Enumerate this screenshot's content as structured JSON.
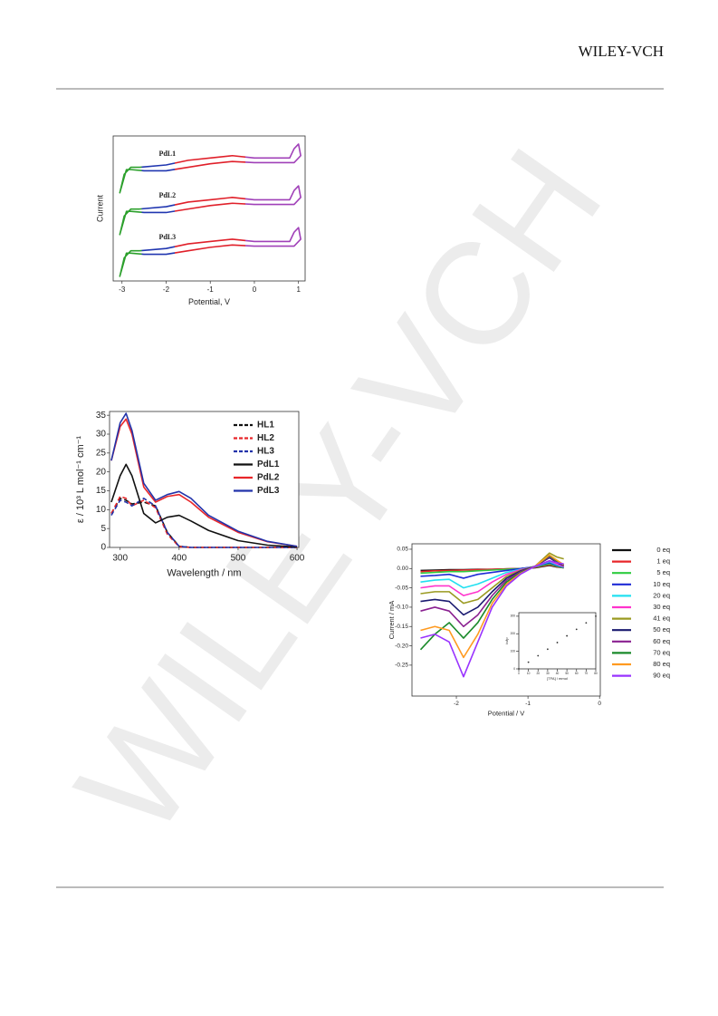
{
  "header": {
    "publisher": "WILEY-VCH"
  },
  "watermark": "WILEY-VCH",
  "figures": [
    {
      "chart_data": {
        "type": "line",
        "xlabel": "Potential, V",
        "ylabel": "Current",
        "xlim": [
          -3.2,
          1.15
        ],
        "xticks": [
          -3,
          -2,
          -1,
          0,
          1
        ],
        "ylim": [
          -1,
          11.5
        ],
        "colors": [
          "#2ca02c",
          "#2036b0",
          "#e0202a",
          "#a040b8"
        ],
        "color_breaks": [
          -2.55,
          -1.8,
          -0.2
        ],
        "x": [
          -2.6,
          -2.0,
          -1.5,
          -1.0,
          -0.5,
          0.0,
          0.8,
          0.9,
          1.0,
          1.05,
          0.9,
          0.5,
          0.0,
          -0.5,
          -1.0,
          -1.5,
          -2.0,
          -2.5,
          -2.8,
          -2.9,
          -3.05,
          -2.95,
          -2.8,
          -2.6
        ],
        "series": [
          {
            "name": "PdL1",
            "values": [
              8.8,
              9.0,
              9.4,
              9.6,
              9.8,
              9.6,
              9.6,
              10.4,
              10.8,
              9.8,
              9.2,
              9.2,
              9.2,
              9.3,
              9.1,
              8.8,
              8.5,
              8.5,
              8.6,
              8.6,
              6.6,
              8.2,
              8.8,
              8.8
            ]
          },
          {
            "name": "PdL2",
            "values": [
              5.2,
              5.4,
              5.8,
              6.0,
              6.2,
              6.0,
              6.0,
              6.8,
              7.2,
              6.2,
              5.6,
              5.6,
              5.6,
              5.7,
              5.5,
              5.2,
              4.9,
              4.9,
              5.0,
              5.0,
              3.0,
              4.6,
              5.2,
              5.2
            ]
          },
          {
            "name": "PdL3",
            "values": [
              1.6,
              1.8,
              2.2,
              2.4,
              2.6,
              2.4,
              2.4,
              3.2,
              3.6,
              2.6,
              2.0,
              2.0,
              2.0,
              2.1,
              1.9,
              1.6,
              1.3,
              1.3,
              1.4,
              1.4,
              -0.6,
              1.0,
              1.6,
              1.6
            ]
          }
        ]
      }
    },
    {
      "chart_data": {
        "type": "line",
        "xlabel": "Wavelength / nm",
        "ylabel": "ε / 10³ L mol⁻¹ cm⁻¹",
        "xlim": [
          282,
          603
        ],
        "xticks": [
          300,
          400,
          500,
          600
        ],
        "ylim": [
          0,
          36
        ],
        "yticks": [
          0,
          5,
          10,
          15,
          20,
          25,
          30,
          35
        ],
        "legend": "upper right",
        "x": [
          285,
          300,
          310,
          320,
          340,
          360,
          380,
          400,
          420,
          450,
          500,
          550,
          600
        ],
        "series": [
          {
            "name": "HL1",
            "color": "#111111",
            "dash": true,
            "values": [
              9,
              13,
              12.5,
              11.5,
              12,
              11,
              4,
              0.3,
              0,
              0,
              0,
              0,
              0
            ]
          },
          {
            "name": "HL2",
            "color": "#e8262a",
            "dash": true,
            "values": [
              9,
              13.5,
              13,
              11,
              12.5,
              10.5,
              3.5,
              0.2,
              0,
              0,
              0,
              0,
              0
            ]
          },
          {
            "name": "HL3",
            "color": "#2233aa",
            "dash": true,
            "values": [
              8.5,
              12.5,
              12,
              11,
              13,
              11,
              4,
              0.3,
              0,
              0,
              0,
              0,
              0
            ]
          },
          {
            "name": "PdL1",
            "color": "#111111",
            "values": [
              12,
              19,
              22,
              19,
              9,
              6.5,
              8,
              8.5,
              7,
              4.5,
              1.8,
              0.6,
              0.1
            ]
          },
          {
            "name": "PdL2",
            "color": "#e8262a",
            "values": [
              23,
              32,
              34,
              30,
              16,
              12,
              13.5,
              14,
              12,
              8,
              4,
              1.5,
              0.3
            ]
          },
          {
            "name": "PdL3",
            "color": "#2233aa",
            "values": [
              23,
              33,
              35.5,
              31,
              17,
              12.5,
              14,
              14.8,
              13,
              8.5,
              4.3,
              1.6,
              0.3
            ]
          }
        ]
      }
    },
    {
      "chart_data": {
        "type": "line",
        "xlabel": "Potential / V",
        "ylabel": "Current / mA",
        "xlim": [
          -2.62,
          0.01
        ],
        "xticks": [
          -2,
          -1,
          0
        ],
        "ylim": [
          -0.33,
          0.064
        ],
        "yticks": [
          0.05,
          {
            "value": 0,
            "label": "0.00"
          },
          -0.05,
          {
            "value": -0.1,
            "label": "-0.10"
          },
          -0.15,
          {
            "value": -0.2,
            "label": "-0.20"
          },
          -0.25
        ],
        "legend": "right",
        "x": [
          -2.5,
          -2.3,
          -2.1,
          -1.9,
          -1.7,
          -1.5,
          -1.3,
          -1.1,
          -0.9,
          -0.7,
          -0.6,
          -0.5
        ],
        "series": [
          {
            "name": "0 eq",
            "color": "#111111",
            "values": [
              -0.005,
              -0.004,
              -0.003,
              -0.003,
              -0.002,
              -0.002,
              -0.001,
              0,
              0.002,
              0.008,
              0.004,
              0.002
            ]
          },
          {
            "name": "1 eq",
            "color": "#e8262a",
            "values": [
              -0.008,
              -0.006,
              -0.005,
              -0.004,
              -0.003,
              -0.002,
              -0.001,
              0,
              0.003,
              0.01,
              0.005,
              0.002
            ]
          },
          {
            "name": "5 eq",
            "color": "#2ecc40",
            "values": [
              -0.012,
              -0.01,
              -0.008,
              -0.008,
              -0.006,
              -0.004,
              -0.002,
              0,
              0.004,
              0.012,
              0.006,
              0.002
            ]
          },
          {
            "name": "10 eq",
            "color": "#1f2bd6",
            "values": [
              -0.02,
              -0.018,
              -0.015,
              -0.025,
              -0.015,
              -0.01,
              -0.005,
              0,
              0.005,
              0.015,
              0.008,
              0.003
            ]
          },
          {
            "name": "20 eq",
            "color": "#22e0f0",
            "values": [
              -0.035,
              -0.03,
              -0.028,
              -0.05,
              -0.04,
              -0.025,
              -0.01,
              -0.002,
              0.005,
              0.018,
              0.01,
              0.004
            ]
          },
          {
            "name": "30 eq",
            "color": "#ff33cc",
            "values": [
              -0.05,
              -0.045,
              -0.045,
              -0.07,
              -0.06,
              -0.035,
              -0.015,
              -0.003,
              0.005,
              0.02,
              0.012,
              0.005
            ]
          },
          {
            "name": "41 eq",
            "color": "#9a9a20",
            "values": [
              -0.065,
              -0.06,
              -0.06,
              -0.09,
              -0.08,
              -0.05,
              -0.02,
              -0.005,
              0.006,
              0.04,
              0.03,
              0.025
            ]
          },
          {
            "name": "50 eq",
            "color": "#1a1a70",
            "values": [
              -0.085,
              -0.08,
              -0.085,
              -0.12,
              -0.1,
              -0.06,
              -0.025,
              -0.006,
              0.006,
              0.028,
              0.016,
              0.007
            ]
          },
          {
            "name": "60 eq",
            "color": "#8a2090",
            "values": [
              -0.11,
              -0.1,
              -0.11,
              -0.15,
              -0.12,
              -0.07,
              -0.03,
              -0.008,
              0.006,
              0.03,
              0.018,
              0.008
            ]
          },
          {
            "name": "70 eq",
            "color": "#1a8a2a",
            "values": [
              -0.21,
              -0.17,
              -0.14,
              -0.18,
              -0.14,
              -0.08,
              -0.035,
              -0.01,
              0.006,
              0.033,
              0.02,
              0.009
            ]
          },
          {
            "name": "80 eq",
            "color": "#ff9a20",
            "values": [
              -0.16,
              -0.15,
              -0.16,
              -0.23,
              -0.17,
              -0.09,
              -0.04,
              -0.012,
              0.006,
              0.035,
              0.022,
              0.01
            ]
          },
          {
            "name": "90 eq",
            "color": "#9933ff",
            "values": [
              -0.18,
              -0.17,
              -0.19,
              -0.28,
              -0.19,
              -0.1,
              -0.045,
              -0.014,
              0.006,
              0.02,
              0.015,
              0.012
            ]
          }
        ],
        "inset": {
          "type": "scatter",
          "xlabel": "[TFA] / mmol",
          "ylabel": "ic/ip",
          "xlim": [
            0,
            80
          ],
          "xticks": [
            0,
            10,
            20,
            30,
            40,
            50,
            60,
            70,
            80
          ],
          "ylim": [
            0,
            320
          ],
          "yticks": [
            0,
            100,
            200,
            300
          ],
          "x": [
            0,
            10,
            20,
            30,
            40,
            50,
            60,
            70,
            80
          ],
          "values": [
            0,
            38,
            75,
            112,
            150,
            188,
            225,
            262,
            300
          ],
          "color": "#333333"
        }
      }
    }
  ]
}
